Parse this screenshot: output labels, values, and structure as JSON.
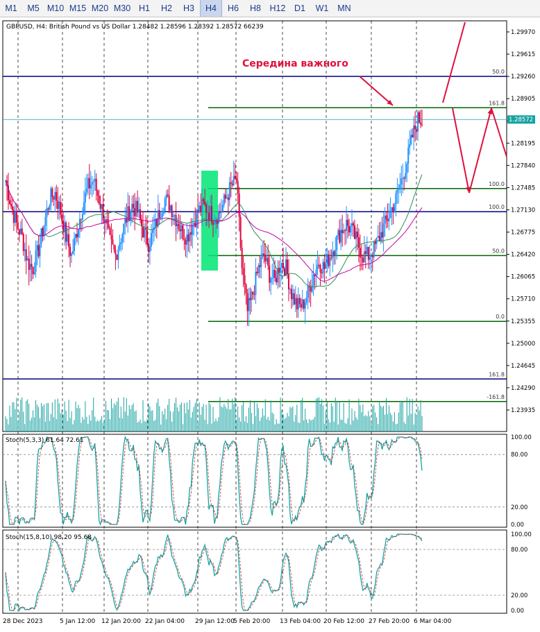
{
  "timeframes": [
    "M1",
    "M5",
    "M10",
    "M15",
    "M20",
    "M30",
    "H1",
    "H2",
    "H3",
    "H4",
    "H6",
    "H8",
    "H12",
    "D1",
    "W1",
    "MN"
  ],
  "active_timeframe": "H4",
  "chart": {
    "symbol_header": "GBPUSD, H4:  British Pound vs US Dollar  1.28482  1.28596  1.28392  1.28572  66239",
    "annotation": "Середина важного",
    "current_price": "1.28572",
    "colors": {
      "bull_candle": "#1e90ff",
      "bear_candle": "#e0003c",
      "ma_fast": "#2e8b57",
      "ma_slow": "#cc00aa",
      "fib_line": "#006400",
      "level_line": "#000080",
      "arrows": "#e0103c",
      "stoch": "#17a2a2",
      "highlight": "#00e676"
    }
  },
  "chart_data": {
    "type": "candlestick",
    "price_axis_ticks": [
      "1.29970",
      "1.29615",
      "1.29260",
      "1.28905",
      "1.28550",
      "1.28195",
      "1.27840",
      "1.27485",
      "1.27130",
      "1.26775",
      "1.26420",
      "1.26065",
      "1.25710",
      "1.25355",
      "1.25000",
      "1.24645",
      "1.24290",
      "1.23935"
    ],
    "time_axis_labels": [
      "28 Dec 2023",
      "5 Jan 12:00",
      "12 Jan 20:00",
      "22 Jan 04:00",
      "29 Jan 12:00",
      "5 Feb 20:00",
      "13 Feb 04:00",
      "20 Feb 12:00",
      "27 Feb 20:00",
      "6 Mar 04:00"
    ],
    "fib_levels": [
      {
        "label": "50.0",
        "price": 1.2926
      },
      {
        "label": "161.8",
        "price": 1.2876
      },
      {
        "label": "100.0",
        "price": 1.2747
      },
      {
        "label": "100.0",
        "price": 1.271
      },
      {
        "label": "50.0",
        "price": 1.264
      },
      {
        "label": "0.0",
        "price": 1.2535
      },
      {
        "label": "161.8",
        "price": 1.2443
      },
      {
        "label": "-161.8",
        "price": 1.2407
      }
    ],
    "close_path": [
      1.276,
      1.272,
      1.269,
      1.267,
      1.263,
      1.262,
      1.265,
      1.269,
      1.273,
      1.274,
      1.271,
      1.267,
      1.264,
      1.268,
      1.272,
      1.275,
      1.276,
      1.273,
      1.27,
      1.266,
      1.264,
      1.267,
      1.27,
      1.272,
      1.271,
      1.268,
      1.266,
      1.268,
      1.271,
      1.273,
      1.272,
      1.27,
      1.268,
      1.267,
      1.269,
      1.271,
      1.272,
      1.271,
      1.27,
      1.271,
      1.273,
      1.275,
      1.276,
      1.262,
      1.255,
      1.258,
      1.262,
      1.264,
      1.261,
      1.26,
      1.263,
      1.262,
      1.258,
      1.256,
      1.256,
      1.258,
      1.261,
      1.263,
      1.262,
      1.264,
      1.266,
      1.268,
      1.269,
      1.268,
      1.266,
      1.264,
      1.264,
      1.265,
      1.267,
      1.269,
      1.271,
      1.273,
      1.276,
      1.279,
      1.283,
      1.2857
    ],
    "stoch1": {
      "label": "Stoch(5,3,3) 61.64 72.61",
      "levels": [
        "100.00",
        "80.00",
        "20.00",
        "0.00"
      ]
    },
    "stoch2": {
      "label": "Stoch(15,8,10) 98.20 95.68",
      "levels": [
        "100.00",
        "80.00",
        "20.00",
        "0.00"
      ]
    }
  }
}
